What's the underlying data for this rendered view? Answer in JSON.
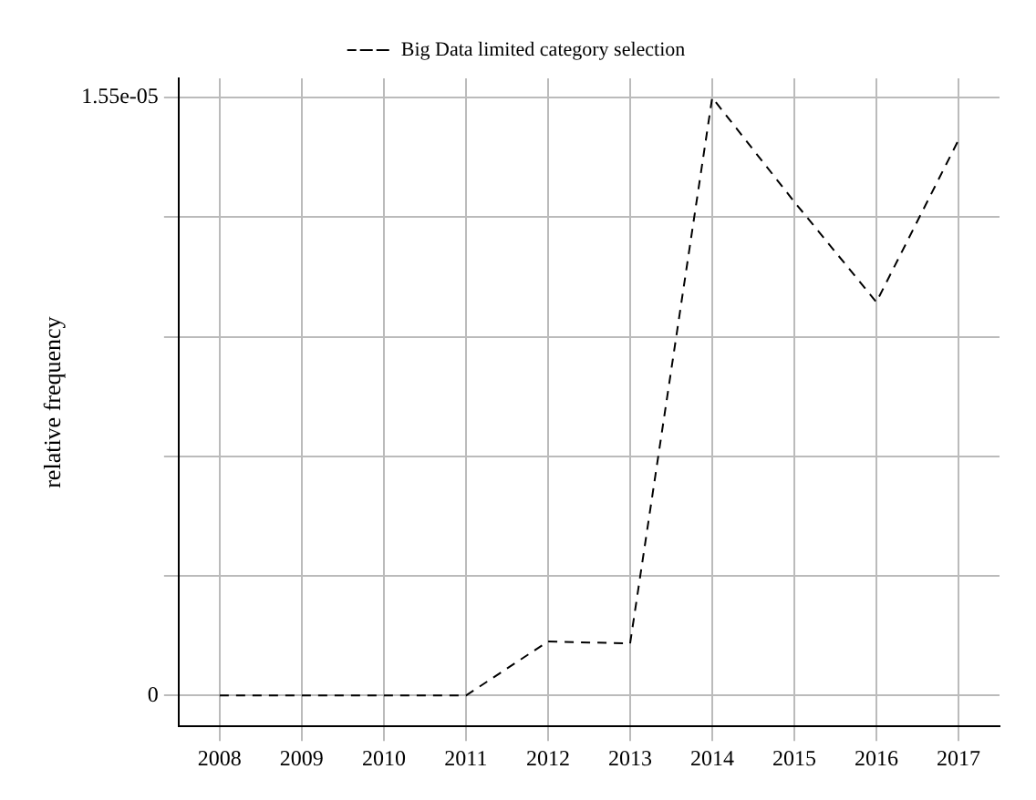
{
  "chart_data": {
    "type": "line",
    "ylabel": "relative frequency",
    "categories": [
      "2008",
      "2009",
      "2010",
      "2011",
      "2012",
      "2013",
      "2014",
      "2015",
      "2016",
      "2017"
    ],
    "series": [
      {
        "name": "Big Data limited category selection",
        "color": "#000000",
        "values": [
          0,
          0,
          0,
          0,
          1.4e-06,
          1.35e-06,
          1.55e-05,
          1.28e-05,
          1.02e-05,
          1.44e-05
        ]
      }
    ],
    "ylim": [
      -8e-07,
      1.6e-05
    ],
    "yticks": [
      0,
      {
        "value": 3.1e-06,
        "label": null
      },
      {
        "value": 6.2e-06,
        "label": null
      },
      {
        "value": 9.3e-06,
        "label": null
      },
      {
        "value": 1.24e-05,
        "label": null
      },
      {
        "value": 1.55e-05,
        "label": "1.55e-05"
      }
    ],
    "grid": true,
    "legend": "top",
    "marker": "none",
    "line_style": "dashed"
  }
}
